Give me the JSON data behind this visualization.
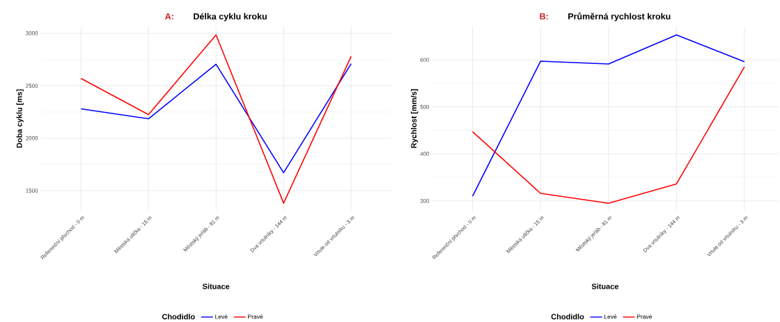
{
  "chart_data": [
    {
      "type": "line",
      "title": "Délka cyklu kroku",
      "annotations": [
        "A:"
      ],
      "xlabel": "Situace",
      "ylabel": "Doba cyklu [ms]",
      "legend_title": "Chodidlo",
      "legend": "bottom",
      "grid": true,
      "categories": [
        "Referenční přechod - 0 m",
        "Městská ulička - 15 m",
        "Městský jeřáb - 81 m",
        "Dva vrtulníky - 144 m",
        "Vrtule od vrtulníku - 3 m"
      ],
      "ylim": [
        1308,
        3066
      ],
      "yticks": [
        1500,
        2000,
        2500,
        3000
      ],
      "series": [
        {
          "name": "Levé",
          "color": "#0000ff",
          "values": [
            2280,
            2185,
            2705,
            1670,
            2710
          ]
        },
        {
          "name": "Pravé",
          "color": "#ff0000",
          "values": [
            2570,
            2225,
            2985,
            1380,
            2780
          ]
        }
      ]
    },
    {
      "type": "line",
      "title": "Průměrná rychlost kroku",
      "annotations": [
        "B:"
      ],
      "xlabel": "Situace",
      "ylabel": "Rychlost [mm/s]",
      "legend_title": "Chodidlo",
      "legend": "bottom",
      "grid": true,
      "categories": [
        "Referenční přechod - 0 m",
        "Městská ulička - 15 m",
        "Městský jeřáb - 81 m",
        "Dva vrtulníky - 144 m",
        "Vrtule od vrtulníku - 3 m"
      ],
      "ylim": [
        279,
        671
      ],
      "yticks": [
        300,
        400,
        500,
        600
      ],
      "series": [
        {
          "name": "Levé",
          "color": "#0000ff",
          "values": [
            310,
            597,
            591,
            653,
            596
          ]
        },
        {
          "name": "Pravé",
          "color": "#ff0000",
          "values": [
            447,
            316,
            295,
            336,
            585
          ]
        }
      ]
    }
  ]
}
